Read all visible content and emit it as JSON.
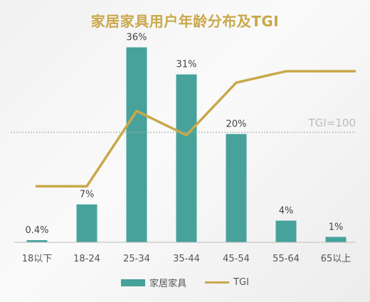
{
  "chart_data": {
    "type": "bar",
    "title": "家居家具用户年龄分布及TGI",
    "categories": [
      "18以下",
      "18-24",
      "25-34",
      "35-44",
      "45-54",
      "55-64",
      "65以上"
    ],
    "series": [
      {
        "name": "家居家具",
        "kind": "bar",
        "values": [
          0.4,
          7,
          36,
          31,
          20,
          4,
          1
        ],
        "labels": [
          "0.4%",
          "7%",
          "36%",
          "31%",
          "20%",
          "4%",
          "1%"
        ],
        "color": "#47a29b"
      },
      {
        "name": "TGI",
        "kind": "line",
        "values": [
          62,
          62,
          115,
          98,
          135,
          143,
          143
        ],
        "color": "#c9a84a"
      }
    ],
    "reference_line": {
      "label": "TGI=100",
      "value": 100
    },
    "ylim": [
      0,
      40
    ],
    "tgi_lim": [
      0,
      150
    ],
    "legend_position": "bottom-center",
    "grid": false
  }
}
